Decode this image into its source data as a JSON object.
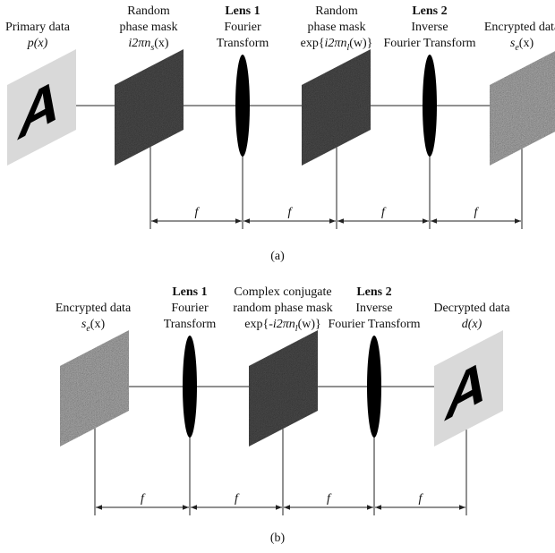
{
  "panel_a": {
    "items": [
      {
        "lines": [
          "Primary data"
        ],
        "formula": {
          "main": "p(x)"
        },
        "letter": "A"
      },
      {
        "lines": [
          "Random",
          "phase mask"
        ],
        "formula": {
          "main": "i2πn",
          "sub": "s",
          "end": "(x)"
        }
      },
      {
        "bold": "Lens 1",
        "lines": [
          "Fourier",
          "Transform"
        ]
      },
      {
        "lines": [
          "Random",
          "phase mask"
        ],
        "formula": {
          "pre": "exp{",
          "main": "i2πn",
          "sub": "l",
          "end": "(w)}"
        }
      },
      {
        "bold": "Lens 2",
        "lines": [
          "Inverse",
          "Fourier Transform"
        ]
      },
      {
        "lines": [
          "Encrypted data"
        ],
        "formula": {
          "main": "s",
          "sub": "e",
          "end": "(x)"
        }
      }
    ],
    "distances": [
      "f",
      "f",
      "f",
      "f"
    ],
    "caption": "(a)"
  },
  "panel_b": {
    "items": [
      {
        "lines": [
          "Encrypted data"
        ],
        "formula": {
          "main": "s",
          "sub": "e",
          "end": "(x)"
        }
      },
      {
        "bold": "Lens 1",
        "lines": [
          "Fourier",
          "Transform"
        ]
      },
      {
        "lines": [
          "Complex conjugate",
          "random phase mask"
        ],
        "formula": {
          "pre": "exp{",
          "main": "-i2πn",
          "sub": "l",
          "end": "(w)}"
        }
      },
      {
        "bold": "Lens 2",
        "lines": [
          "Inverse",
          "Fourier Transform"
        ]
      },
      {
        "lines": [
          "Decrypted data"
        ],
        "formula": {
          "main": "d(x)"
        },
        "letter": "A"
      }
    ],
    "distances": [
      "f",
      "f",
      "f",
      "f"
    ],
    "caption": "(b)"
  }
}
